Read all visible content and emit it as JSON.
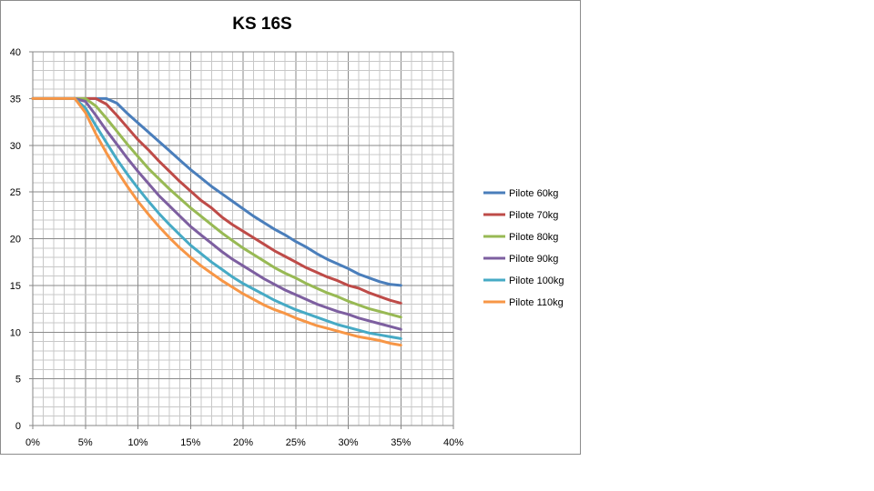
{
  "chart_data": {
    "type": "line",
    "title": "KS 16S",
    "xlabel": "",
    "ylabel": "",
    "xlim": [
      0,
      40
    ],
    "ylim": [
      0,
      40
    ],
    "x_ticks": [
      0,
      5,
      10,
      15,
      20,
      25,
      30,
      35,
      40
    ],
    "x_tick_labels": [
      "0%",
      "5%",
      "10%",
      "15%",
      "20%",
      "25%",
      "30%",
      "35%",
      "40%"
    ],
    "y_ticks": [
      0,
      5,
      10,
      15,
      20,
      25,
      30,
      35,
      40
    ],
    "y_tick_labels": [
      "0",
      "5",
      "10",
      "15",
      "20",
      "25",
      "30",
      "35",
      "40"
    ],
    "grid": true,
    "legend_position": "right",
    "series": [
      {
        "name": "Pilote 60kg",
        "color": "#4a7ebb",
        "x": [
          0,
          4,
          5,
          6,
          7,
          8,
          9,
          10,
          11,
          12,
          13,
          14,
          15,
          16,
          17,
          18,
          19,
          20,
          21,
          22,
          23,
          24,
          25,
          26,
          27,
          28,
          29,
          30,
          31,
          32,
          33,
          34,
          35
        ],
        "y": [
          35,
          35,
          35,
          35,
          35,
          34.5,
          33.4,
          32.4,
          31.4,
          30.4,
          29.4,
          28.4,
          27.4,
          26.5,
          25.6,
          24.8,
          24,
          23.2,
          22.4,
          21.7,
          21,
          20.4,
          19.7,
          19.1,
          18.4,
          17.8,
          17.3,
          16.8,
          16.2,
          15.8,
          15.4,
          15.1,
          15
        ]
      },
      {
        "name": "Pilote 70kg",
        "color": "#be4b48",
        "x": [
          0,
          4,
          5,
          6,
          7,
          8,
          9,
          10,
          11,
          12,
          13,
          14,
          15,
          16,
          17,
          18,
          19,
          20,
          21,
          22,
          23,
          24,
          25,
          26,
          27,
          28,
          29,
          30,
          31,
          32,
          33,
          34,
          35
        ],
        "y": [
          35,
          35,
          35,
          35,
          34.4,
          33.2,
          31.9,
          30.6,
          29.5,
          28.3,
          27.2,
          26.1,
          25.1,
          24.1,
          23.3,
          22.3,
          21.5,
          20.8,
          20.1,
          19.4,
          18.7,
          18.1,
          17.5,
          16.9,
          16.4,
          15.9,
          15.5,
          15,
          14.7,
          14.2,
          13.8,
          13.4,
          13.1
        ]
      },
      {
        "name": "Pilote 80kg",
        "color": "#98b954",
        "x": [
          0,
          4,
          5,
          6,
          7,
          8,
          9,
          10,
          11,
          12,
          13,
          14,
          15,
          16,
          17,
          18,
          19,
          20,
          21,
          22,
          23,
          24,
          25,
          26,
          27,
          28,
          29,
          30,
          31,
          32,
          33,
          34,
          35
        ],
        "y": [
          35,
          35,
          35,
          34.2,
          32.9,
          31.5,
          30.1,
          28.8,
          27.5,
          26.4,
          25.3,
          24.3,
          23.3,
          22.4,
          21.5,
          20.6,
          19.8,
          19,
          18.3,
          17.6,
          16.9,
          16.3,
          15.8,
          15.2,
          14.7,
          14.2,
          13.8,
          13.3,
          12.9,
          12.5,
          12.2,
          11.9,
          11.6
        ]
      },
      {
        "name": "Pilote 90kg",
        "color": "#7d5fa0",
        "x": [
          0,
          4,
          5,
          6,
          7,
          8,
          9,
          10,
          11,
          12,
          13,
          14,
          15,
          16,
          17,
          18,
          19,
          20,
          21,
          22,
          23,
          24,
          25,
          26,
          27,
          28,
          29,
          30,
          31,
          32,
          33,
          34,
          35
        ],
        "y": [
          35,
          35,
          34.7,
          33.2,
          31.6,
          30.1,
          28.6,
          27.2,
          25.9,
          24.6,
          23.5,
          22.4,
          21.3,
          20.4,
          19.5,
          18.6,
          17.8,
          17.1,
          16.4,
          15.7,
          15.1,
          14.5,
          14,
          13.5,
          13,
          12.6,
          12.2,
          11.9,
          11.5,
          11.2,
          10.9,
          10.6,
          10.3
        ]
      },
      {
        "name": "Pilote 100kg",
        "color": "#46aac5",
        "x": [
          0,
          4,
          5,
          6,
          7,
          8,
          9,
          10,
          11,
          12,
          13,
          14,
          15,
          16,
          17,
          18,
          19,
          20,
          21,
          22,
          23,
          24,
          25,
          26,
          27,
          28,
          29,
          30,
          31,
          32,
          33,
          34,
          35
        ],
        "y": [
          35,
          35,
          34,
          32.1,
          30.3,
          28.5,
          26.9,
          25.4,
          24,
          22.7,
          21.5,
          20.4,
          19.3,
          18.4,
          17.5,
          16.7,
          15.9,
          15.2,
          14.6,
          14,
          13.4,
          12.9,
          12.4,
          12,
          11.6,
          11.2,
          10.8,
          10.5,
          10.2,
          9.9,
          9.7,
          9.5,
          9.3
        ]
      },
      {
        "name": "Pilote 110kg",
        "color": "#f79646",
        "x": [
          0,
          4,
          5,
          6,
          7,
          8,
          9,
          10,
          11,
          12,
          13,
          14,
          15,
          16,
          17,
          18,
          19,
          20,
          21,
          22,
          23,
          24,
          25,
          26,
          27,
          28,
          29,
          30,
          31,
          32,
          33,
          34,
          35
        ],
        "y": [
          35,
          35,
          33.5,
          31.2,
          29.2,
          27.3,
          25.6,
          24,
          22.6,
          21.3,
          20.1,
          19,
          18,
          17.1,
          16.3,
          15.5,
          14.8,
          14.1,
          13.5,
          12.9,
          12.4,
          12,
          11.5,
          11.1,
          10.7,
          10.4,
          10.1,
          9.8,
          9.5,
          9.3,
          9.1,
          8.8,
          8.6
        ]
      }
    ]
  }
}
